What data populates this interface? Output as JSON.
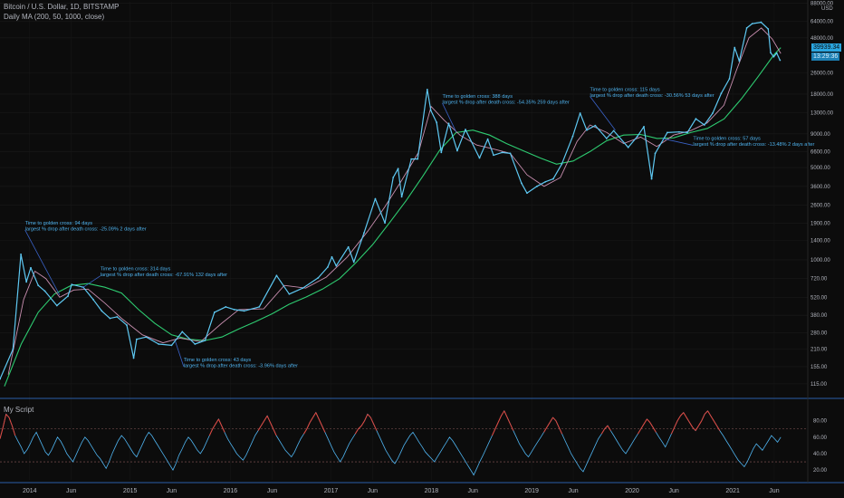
{
  "header": {
    "title": "Bitcoin / U.S. Dollar, 1D, BITSTAMP",
    "indicator": "Daily MA (200, 50, 1000, close)",
    "subpane_title": "My Script"
  },
  "price_tag": {
    "price": "39939.34",
    "countdown": "13:29:36",
    "color": "#2aa6e0"
  },
  "currency_label": "USD",
  "colors": {
    "background": "#0c0c0c",
    "price": "#5ec8f2",
    "ma200": "#2ecc71",
    "ma50": "#c98fb0",
    "osc": "#4fb4f0",
    "osc_high": "#e0453b",
    "annotation": "#4fb4f0",
    "separator": "#2a5ea8"
  },
  "chart_data": {
    "type": "line",
    "yscale": "log",
    "xlim": [
      "2013-09-15",
      "2021-10-01"
    ],
    "ylim": [
      92,
      90000
    ],
    "x_tick_labels": [
      {
        "date": "2014-01-01",
        "label": "2014"
      },
      {
        "date": "2014-06-01",
        "label": "Jun"
      },
      {
        "date": "2015-01-01",
        "label": "2015"
      },
      {
        "date": "2015-06-01",
        "label": "Jun"
      },
      {
        "date": "2016-01-01",
        "label": "2016"
      },
      {
        "date": "2016-06-01",
        "label": "Jun"
      },
      {
        "date": "2017-01-01",
        "label": "2017"
      },
      {
        "date": "2017-06-01",
        "label": "Jun"
      },
      {
        "date": "2018-01-01",
        "label": "2018"
      },
      {
        "date": "2018-06-01",
        "label": "Jun"
      },
      {
        "date": "2019-01-01",
        "label": "2019"
      },
      {
        "date": "2019-06-01",
        "label": "Jun"
      },
      {
        "date": "2020-01-01",
        "label": "2020"
      },
      {
        "date": "2020-06-01",
        "label": "Jun"
      },
      {
        "date": "2021-01-01",
        "label": "2021"
      },
      {
        "date": "2021-06-01",
        "label": "Jun"
      }
    ],
    "y_tick_labels": [
      {
        "value": 88000,
        "label": "88000.00"
      },
      {
        "value": 64000,
        "label": "64000.00"
      },
      {
        "value": 48000,
        "label": "48000.00"
      },
      {
        "value": 26000,
        "label": "26000.00"
      },
      {
        "value": 18000,
        "label": "18000.00"
      },
      {
        "value": 13000,
        "label": "13000.00"
      },
      {
        "value": 9000,
        "label": "9000.00"
      },
      {
        "value": 6600,
        "label": "6600.00"
      },
      {
        "value": 5000,
        "label": "5000.00"
      },
      {
        "value": 3600,
        "label": "3600.00"
      },
      {
        "value": 2600,
        "label": "2600.00"
      },
      {
        "value": 1900,
        "label": "1900.00"
      },
      {
        "value": 1400,
        "label": "1400.00"
      },
      {
        "value": 1000,
        "label": "1000.00"
      },
      {
        "value": 720,
        "label": "720.00"
      },
      {
        "value": 520,
        "label": "520.00"
      },
      {
        "value": 380,
        "label": "380.00"
      },
      {
        "value": 280,
        "label": "280.00"
      },
      {
        "value": 210,
        "label": "210.00"
      },
      {
        "value": 155,
        "label": "155.00"
      },
      {
        "value": 115,
        "label": "115.00"
      }
    ],
    "series": [
      {
        "key": "price",
        "x": [
          "2013-09-15",
          "2013-11-01",
          "2013-11-30",
          "2013-12-20",
          "2014-01-05",
          "2014-02-01",
          "2014-02-25",
          "2014-04-10",
          "2014-05-20",
          "2014-06-03",
          "2014-07-15",
          "2014-08-20",
          "2014-09-20",
          "2014-10-20",
          "2014-11-15",
          "2014-12-20",
          "2015-01-14",
          "2015-01-25",
          "2015-03-01",
          "2015-04-15",
          "2015-06-01",
          "2015-07-10",
          "2015-08-25",
          "2015-10-01",
          "2015-11-04",
          "2015-12-15",
          "2016-01-15",
          "2016-02-20",
          "2016-04-15",
          "2016-06-17",
          "2016-08-02",
          "2016-09-20",
          "2016-11-15",
          "2016-12-20",
          "2017-01-04",
          "2017-01-20",
          "2017-03-05",
          "2017-03-25",
          "2017-05-01",
          "2017-06-11",
          "2017-07-16",
          "2017-08-15",
          "2017-09-02",
          "2017-09-15",
          "2017-10-20",
          "2017-11-12",
          "2017-12-17",
          "2017-12-30",
          "2018-01-20",
          "2018-02-06",
          "2018-03-05",
          "2018-04-05",
          "2018-05-05",
          "2018-06-25",
          "2018-07-25",
          "2018-08-15",
          "2018-09-15",
          "2018-10-15",
          "2018-11-25",
          "2018-12-15",
          "2019-01-20",
          "2019-02-20",
          "2019-03-20",
          "2019-04-20",
          "2019-05-30",
          "2019-06-26",
          "2019-07-20",
          "2019-08-20",
          "2019-09-30",
          "2019-10-26",
          "2019-12-18",
          "2020-01-20",
          "2020-02-13",
          "2020-03-12",
          "2020-03-25",
          "2020-05-08",
          "2020-06-20",
          "2020-07-20",
          "2020-08-20",
          "2020-09-20",
          "2020-10-20",
          "2020-11-20",
          "2020-12-20",
          "2021-01-08",
          "2021-01-25",
          "2021-02-21",
          "2021-03-13",
          "2021-04-14",
          "2021-05-10",
          "2021-05-19",
          "2021-05-30",
          "2021-06-10",
          "2021-06-22"
        ],
        "values": [
          125,
          210,
          1100,
          680,
          870,
          640,
          580,
          450,
          530,
          650,
          620,
          500,
          410,
          360,
          370,
          320,
          180,
          250,
          260,
          230,
          225,
          285,
          230,
          245,
          400,
          440,
          420,
          410,
          440,
          760,
          550,
          610,
          730,
          880,
          1050,
          900,
          1250,
          960,
          1600,
          2900,
          1900,
          4200,
          4900,
          3000,
          5800,
          5800,
          19500,
          13500,
          11000,
          6500,
          10800,
          6700,
          9700,
          5900,
          8200,
          6200,
          6500,
          6400,
          3800,
          3200,
          3600,
          3900,
          4100,
          5300,
          8600,
          12900,
          9600,
          10400,
          8300,
          9500,
          7100,
          8600,
          10200,
          4100,
          6400,
          9200,
          9300,
          9200,
          11700,
          10500,
          12900,
          18200,
          23500,
          40500,
          32000,
          57000,
          61500,
          63000,
          56000,
          37000,
          34500,
          36800,
          32500
        ]
      },
      {
        "key": "ma50",
        "x": [
          "2013-10-15",
          "2013-12-10",
          "2014-01-20",
          "2014-03-01",
          "2014-04-20",
          "2014-06-10",
          "2014-08-01",
          "2014-10-01",
          "2014-12-01",
          "2015-02-15",
          "2015-05-01",
          "2015-07-01",
          "2015-09-15",
          "2015-11-30",
          "2016-02-01",
          "2016-05-01",
          "2016-07-15",
          "2016-10-01",
          "2016-12-15",
          "2017-03-01",
          "2017-05-15",
          "2017-07-15",
          "2017-09-15",
          "2017-11-15",
          "2017-12-31",
          "2018-02-15",
          "2018-04-15",
          "2018-06-15",
          "2018-08-15",
          "2018-10-15",
          "2018-12-15",
          "2019-02-15",
          "2019-04-15",
          "2019-06-15",
          "2019-08-01",
          "2019-10-01",
          "2019-12-01",
          "2020-02-01",
          "2020-03-31",
          "2020-05-31",
          "2020-07-31",
          "2020-09-30",
          "2020-11-30",
          "2021-01-15",
          "2021-03-01",
          "2021-04-15",
          "2021-05-25",
          "2021-06-25"
        ],
        "values": [
          135,
          500,
          820,
          720,
          520,
          590,
          600,
          470,
          360,
          270,
          235,
          255,
          240,
          330,
          420,
          425,
          640,
          610,
          740,
          1050,
          1650,
          2500,
          4000,
          6500,
          14500,
          11500,
          8800,
          7400,
          6900,
          6400,
          4400,
          3600,
          4200,
          7900,
          10500,
          9200,
          7600,
          8500,
          7200,
          8800,
          9500,
          10900,
          14800,
          27500,
          48000,
          57000,
          47000,
          36500
        ]
      },
      {
        "key": "ma200",
        "x": [
          "2013-10-01",
          "2013-12-01",
          "2014-02-01",
          "2014-04-01",
          "2014-06-01",
          "2014-08-01",
          "2014-10-01",
          "2014-12-01",
          "2015-02-01",
          "2015-04-01",
          "2015-06-01",
          "2015-08-01",
          "2015-10-01",
          "2015-12-01",
          "2016-02-01",
          "2016-04-01",
          "2016-06-01",
          "2016-08-01",
          "2016-10-01",
          "2016-12-01",
          "2017-02-01",
          "2017-04-01",
          "2017-06-01",
          "2017-08-01",
          "2017-10-01",
          "2017-12-01",
          "2018-02-01",
          "2018-04-01",
          "2018-06-01",
          "2018-08-01",
          "2018-10-01",
          "2018-12-01",
          "2019-02-01",
          "2019-04-01",
          "2019-06-01",
          "2019-08-01",
          "2019-10-01",
          "2019-12-01",
          "2020-02-01",
          "2020-04-01",
          "2020-06-01",
          "2020-08-01",
          "2020-10-01",
          "2020-12-01",
          "2021-02-01",
          "2021-04-01",
          "2021-06-01",
          "2021-06-25"
        ],
        "values": [
          110,
          230,
          400,
          550,
          640,
          660,
          620,
          560,
          420,
          330,
          270,
          250,
          245,
          260,
          300,
          340,
          390,
          460,
          520,
          600,
          720,
          950,
          1300,
          1900,
          2800,
          4300,
          6800,
          9200,
          9600,
          8800,
          7600,
          6700,
          5900,
          5300,
          5600,
          6600,
          8000,
          8800,
          8900,
          8300,
          8400,
          9200,
          9900,
          11700,
          16500,
          24000,
          36000,
          40500
        ]
      }
    ],
    "annotations": [
      {
        "lines": [
          "Time to golden cross: 94 days",
          "largest % drop after death cross: -25.09% 2 days after"
        ],
        "text_at": {
          "date": "2013-12-15",
          "value": 1850
        },
        "points_to": {
          "date": "2014-04-20",
          "value": 540
        }
      },
      {
        "lines": [
          "Time to golden cross: 314 days",
          "largest % drop after death cross: -67.91% 132 days after"
        ],
        "text_at": {
          "date": "2014-09-15",
          "value": 830
        },
        "points_to": {
          "date": "2014-07-10",
          "value": 610
        }
      },
      {
        "lines": [
          "Time to golden cross: 43 days",
          "largest % drop after death cross: -3.96% days after"
        ],
        "text_at": {
          "date": "2015-07-15",
          "value": 171
        },
        "points_to": {
          "date": "2015-06-15",
          "value": 240
        }
      },
      {
        "lines": [
          "Time to golden cross: 388 days",
          "largest % drop after death cross: -54.35% 259 days after"
        ],
        "text_at": {
          "date": "2018-02-10",
          "value": 16900
        },
        "points_to": {
          "date": "2018-04-01",
          "value": 9300
        }
      },
      {
        "lines": [
          "Time to golden cross: 115 days",
          "largest % drop after death cross: -30.56% 53 days after"
        ],
        "text_at": {
          "date": "2019-08-01",
          "value": 19000
        },
        "points_to": {
          "date": "2019-11-01",
          "value": 9600
        }
      },
      {
        "lines": [
          "Time to golden cross: 57 days",
          "largest % drop after death cross: -13.48% 2 days after"
        ],
        "text_at": {
          "date": "2020-08-10",
          "value": 8100
        },
        "points_to": {
          "date": "2020-04-20",
          "value": 8300
        }
      }
    ],
    "oscillator": {
      "title": "My Script",
      "ylim": [
        8,
        105
      ],
      "levels": [
        70,
        30
      ],
      "y_tick_labels": [
        {
          "value": 80,
          "label": "80.00"
        },
        {
          "value": 60,
          "label": "60.00"
        },
        {
          "value": 40,
          "label": "40.00"
        },
        {
          "value": 20,
          "label": "20.00"
        }
      ],
      "overbought": 70,
      "x_range": [
        "2013-09-15",
        "2021-06-25"
      ],
      "values": [
        58,
        72,
        88,
        84,
        74,
        62,
        55,
        48,
        40,
        45,
        52,
        60,
        66,
        58,
        50,
        42,
        38,
        44,
        52,
        60,
        55,
        48,
        40,
        35,
        30,
        38,
        46,
        54,
        60,
        56,
        50,
        44,
        38,
        34,
        28,
        22,
        30,
        40,
        48,
        56,
        62,
        58,
        52,
        46,
        40,
        36,
        44,
        52,
        60,
        66,
        62,
        56,
        50,
        44,
        38,
        32,
        26,
        20,
        28,
        38,
        46,
        54,
        60,
        56,
        50,
        44,
        40,
        46,
        54,
        62,
        70,
        76,
        82,
        74,
        66,
        58,
        52,
        46,
        40,
        36,
        32,
        38,
        46,
        54,
        62,
        68,
        74,
        80,
        86,
        78,
        70,
        62,
        56,
        50,
        44,
        40,
        36,
        42,
        50,
        58,
        64,
        70,
        78,
        84,
        90,
        82,
        74,
        66,
        58,
        50,
        42,
        36,
        30,
        36,
        44,
        52,
        58,
        64,
        70,
        74,
        80,
        88,
        84,
        76,
        68,
        60,
        52,
        44,
        38,
        32,
        28,
        34,
        42,
        50,
        56,
        62,
        66,
        60,
        54,
        48,
        42,
        38,
        34,
        30,
        36,
        42,
        48,
        54,
        60,
        56,
        50,
        44,
        38,
        32,
        26,
        20,
        14,
        22,
        30,
        38,
        46,
        54,
        62,
        70,
        78,
        86,
        92,
        84,
        76,
        68,
        60,
        52,
        46,
        40,
        36,
        42,
        48,
        54,
        60,
        66,
        72,
        78,
        84,
        80,
        72,
        64,
        56,
        48,
        40,
        34,
        28,
        22,
        18,
        26,
        34,
        42,
        50,
        58,
        64,
        70,
        74,
        68,
        62,
        56,
        50,
        44,
        40,
        46,
        52,
        58,
        64,
        70,
        76,
        82,
        78,
        72,
        66,
        60,
        54,
        48,
        56,
        64,
        72,
        80,
        86,
        90,
        84,
        78,
        72,
        68,
        74,
        80,
        88,
        92,
        86,
        80,
        74,
        68,
        62,
        56,
        50,
        44,
        38,
        32,
        28,
        24,
        30,
        38,
        46,
        52,
        48,
        44,
        50,
        56,
        62,
        58,
        54,
        60
      ]
    }
  }
}
